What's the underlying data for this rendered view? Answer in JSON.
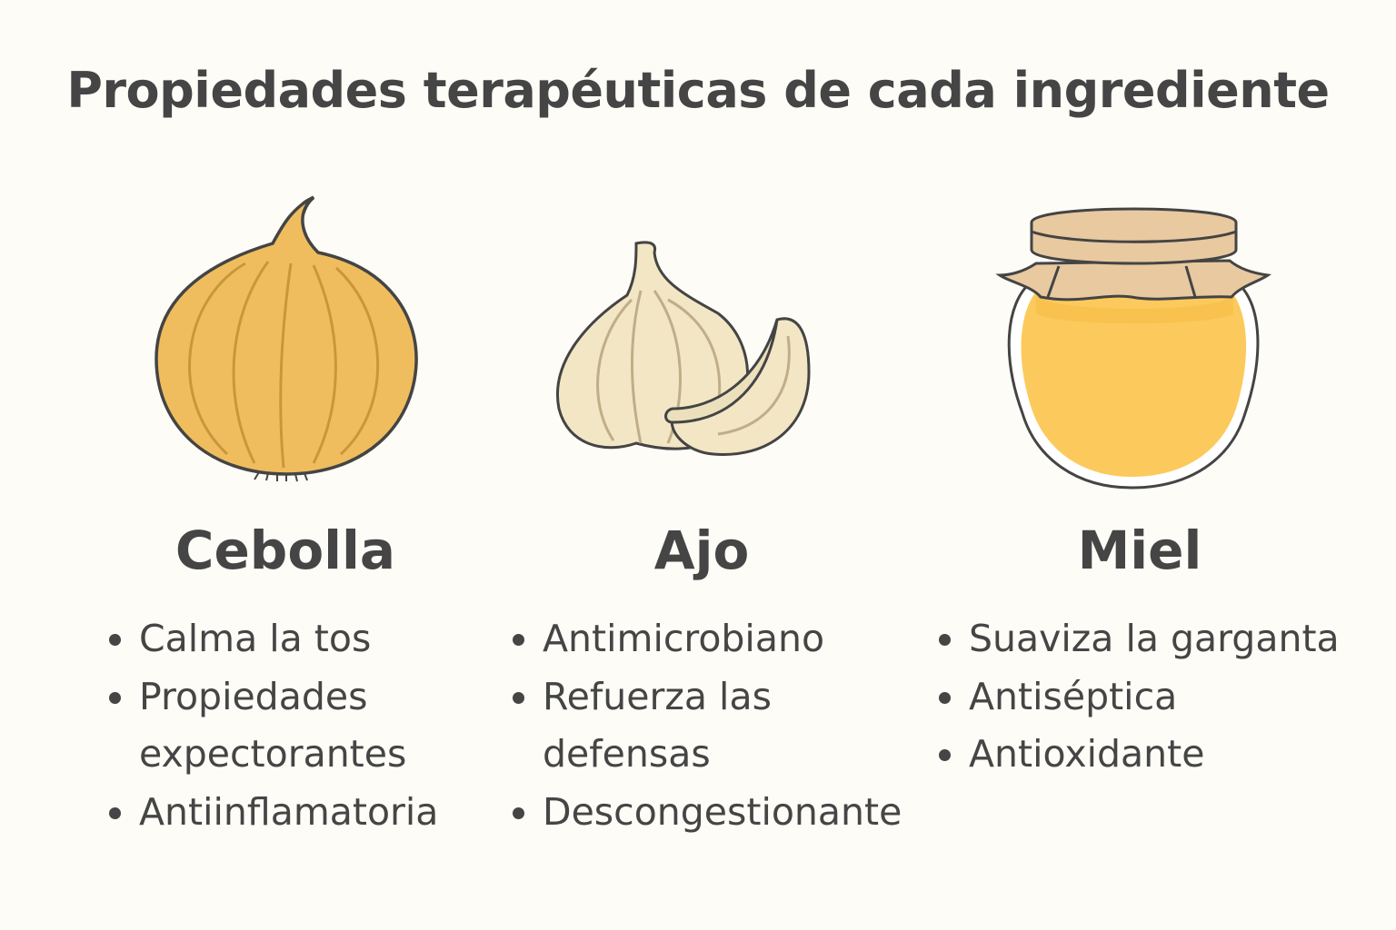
{
  "title": "Propiedades terapéuticas de cada ingrediente",
  "ingredients": [
    {
      "name": "Cebolla",
      "icon": "onion-icon",
      "color": "#f0bd5e",
      "properties": [
        "Calma la tos",
        "Propiedades\nexpectorantes",
        "Antiinflamatoria"
      ]
    },
    {
      "name": "Ajo",
      "icon": "garlic-icon",
      "color": "#f3e6c4",
      "properties": [
        "Antimicrobiano",
        "Refuerza las\ndefensas",
        "Descongestionante"
      ]
    },
    {
      "name": "Miel",
      "icon": "honey-jar-icon",
      "color": "#fcca5c",
      "properties": [
        "Suaviza la garganta",
        "Antiséptica",
        "Antioxidante"
      ]
    }
  ]
}
